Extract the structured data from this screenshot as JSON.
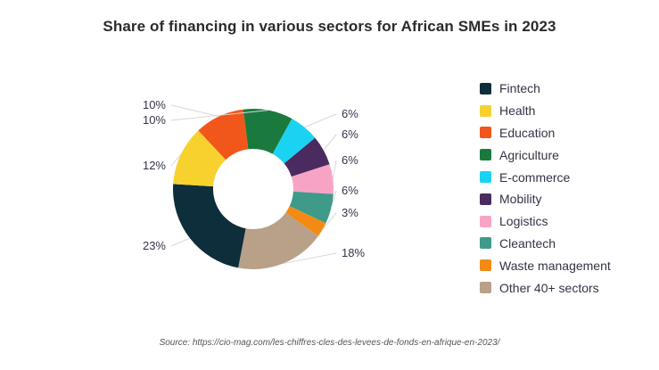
{
  "chart_data": {
    "type": "pie",
    "donut": true,
    "title": "Share of financing in various sectors for African SMEs in 2023",
    "source": "Source: https://cio-mag.com/les-chiffres-cles-des-levees-de-fonds-en-afrique-en-2023/",
    "legend_position": "right",
    "slices": [
      {
        "name": "Fintech",
        "value": 23,
        "label": "23%",
        "color": "#0d2e3a"
      },
      {
        "name": "Health",
        "value": 12,
        "label": "12%",
        "color": "#f7d12e"
      },
      {
        "name": "Education",
        "value": 10,
        "label": "10%",
        "color": "#f1561b"
      },
      {
        "name": "Agriculture",
        "value": 10,
        "label": "10%",
        "color": "#1a7a3e"
      },
      {
        "name": "E-commerce",
        "value": 6,
        "label": "6%",
        "color": "#1ad3f2"
      },
      {
        "name": "Mobility",
        "value": 6,
        "label": "6%",
        "color": "#4b2a5f"
      },
      {
        "name": "Logistics",
        "value": 6,
        "label": "6%",
        "color": "#f7a3c6"
      },
      {
        "name": "Cleantech",
        "value": 6,
        "label": "6%",
        "color": "#3f9a8a"
      },
      {
        "name": "Waste management",
        "value": 3,
        "label": "3%",
        "color": "#f28a13"
      },
      {
        "name": "Other 40+ sectors",
        "value": 18,
        "label": "18%",
        "color": "#b9a089"
      }
    ]
  }
}
